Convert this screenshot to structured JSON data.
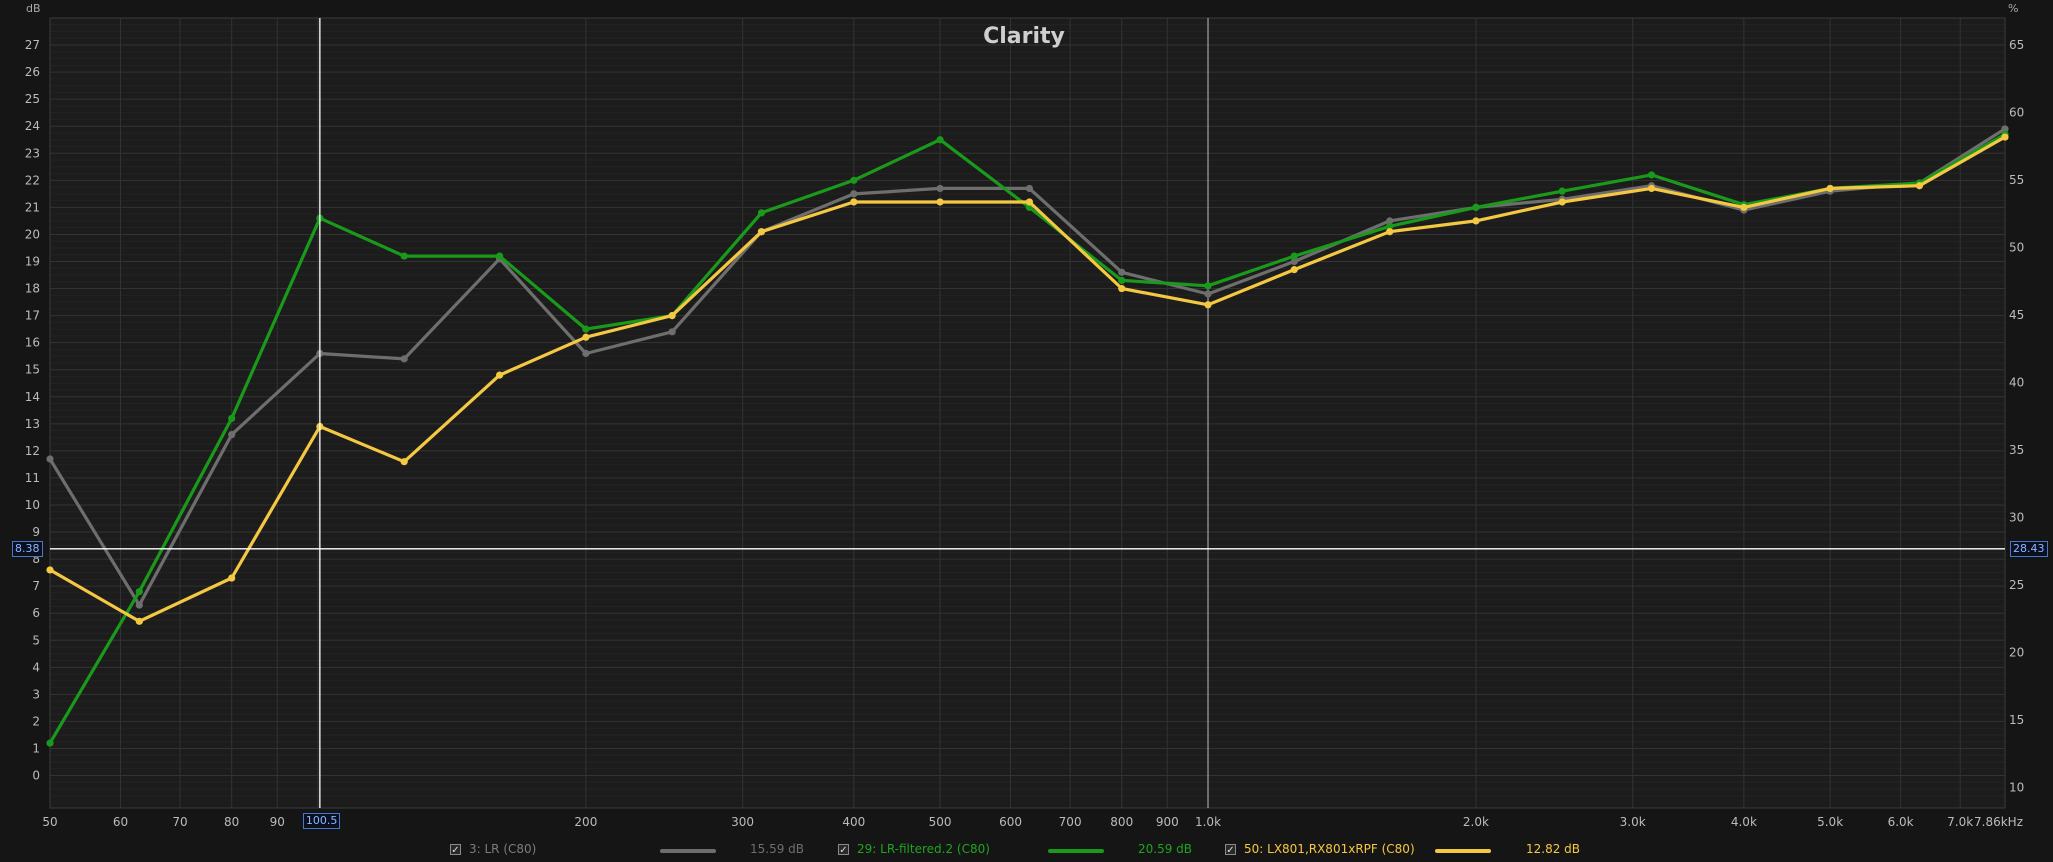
{
  "chart_data": {
    "type": "line",
    "title": "Clarity",
    "x_scale": "log",
    "xlim": [
      50,
      7860
    ],
    "ylim_left": [
      -1.2,
      28
    ],
    "ylim_right": [
      8.5,
      67
    ],
    "left_unit": "dB",
    "right_unit": "%",
    "grid": true,
    "x_ticks": [
      {
        "value": 50,
        "label": "50"
      },
      {
        "value": 60,
        "label": "60"
      },
      {
        "value": 70,
        "label": "70"
      },
      {
        "value": 80,
        "label": "80"
      },
      {
        "value": 90,
        "label": "90"
      },
      {
        "value": 200,
        "label": "200"
      },
      {
        "value": 300,
        "label": "300"
      },
      {
        "value": 400,
        "label": "400"
      },
      {
        "value": 500,
        "label": "500"
      },
      {
        "value": 600,
        "label": "600"
      },
      {
        "value": 700,
        "label": "700"
      },
      {
        "value": 800,
        "label": "800"
      },
      {
        "value": 900,
        "label": "900"
      },
      {
        "value": 1000,
        "label": "1.0k"
      },
      {
        "value": 2000,
        "label": "2.0k"
      },
      {
        "value": 3000,
        "label": "3.0k"
      },
      {
        "value": 4000,
        "label": "4.0k"
      },
      {
        "value": 5000,
        "label": "5.0k"
      },
      {
        "value": 6000,
        "label": "6.0k"
      },
      {
        "value": 7000,
        "label": "7.0k"
      },
      {
        "value": 7860,
        "label": "7.86kHz"
      }
    ],
    "left_ticks": [
      "0",
      "1",
      "2",
      "3",
      "4",
      "5",
      "6",
      "7",
      "8",
      "9",
      "10",
      "11",
      "12",
      "13",
      "14",
      "15",
      "16",
      "17",
      "18",
      "19",
      "20",
      "21",
      "22",
      "23",
      "24",
      "25",
      "26",
      "27"
    ],
    "right_ticks": [
      "10",
      "15",
      "20",
      "25",
      "30",
      "35",
      "40",
      "45",
      "50",
      "55",
      "60",
      "65"
    ],
    "cursor": {
      "x": 100.5,
      "x_label": "100.5",
      "y": 8.38,
      "y_label": "8.38",
      "y_right_label": "28.43"
    },
    "ref_line_x": 1000,
    "x": [
      50,
      63,
      80,
      100.5,
      125,
      160,
      200,
      250,
      315,
      400,
      500,
      630,
      800,
      1000,
      1250,
      1600,
      2000,
      2500,
      3150,
      4000,
      5000,
      6300,
      7860
    ],
    "series": [
      {
        "name": "3: LR (C80)",
        "color": "#6e6e6e",
        "legend_value": "15.59 dB",
        "values": [
          11.7,
          6.3,
          12.6,
          15.6,
          15.4,
          19.1,
          15.6,
          16.4,
          20.1,
          21.5,
          21.7,
          21.7,
          18.6,
          17.8,
          19.0,
          20.5,
          21.0,
          21.3,
          21.8,
          20.9,
          21.6,
          21.9,
          23.9
        ]
      },
      {
        "name": "29: LR-filtered.2 (C80)",
        "color": "#1a9a1a",
        "legend_value": "20.59 dB",
        "values": [
          1.2,
          6.8,
          13.2,
          20.6,
          19.2,
          19.2,
          16.5,
          17.0,
          20.8,
          22.0,
          23.5,
          21.0,
          18.3,
          18.1,
          19.2,
          20.3,
          21.0,
          21.6,
          22.2,
          21.1,
          21.7,
          21.9,
          23.7
        ]
      },
      {
        "name": "50: LX801,RX801xRPF (C80)",
        "color": "#f5c842",
        "legend_value": "12.82 dB",
        "values": [
          7.6,
          5.7,
          7.3,
          12.9,
          11.6,
          14.8,
          16.2,
          17.0,
          20.1,
          21.2,
          21.2,
          21.2,
          18.0,
          17.4,
          18.7,
          20.1,
          20.5,
          21.2,
          21.7,
          21.0,
          21.7,
          21.8,
          23.6
        ]
      }
    ]
  }
}
